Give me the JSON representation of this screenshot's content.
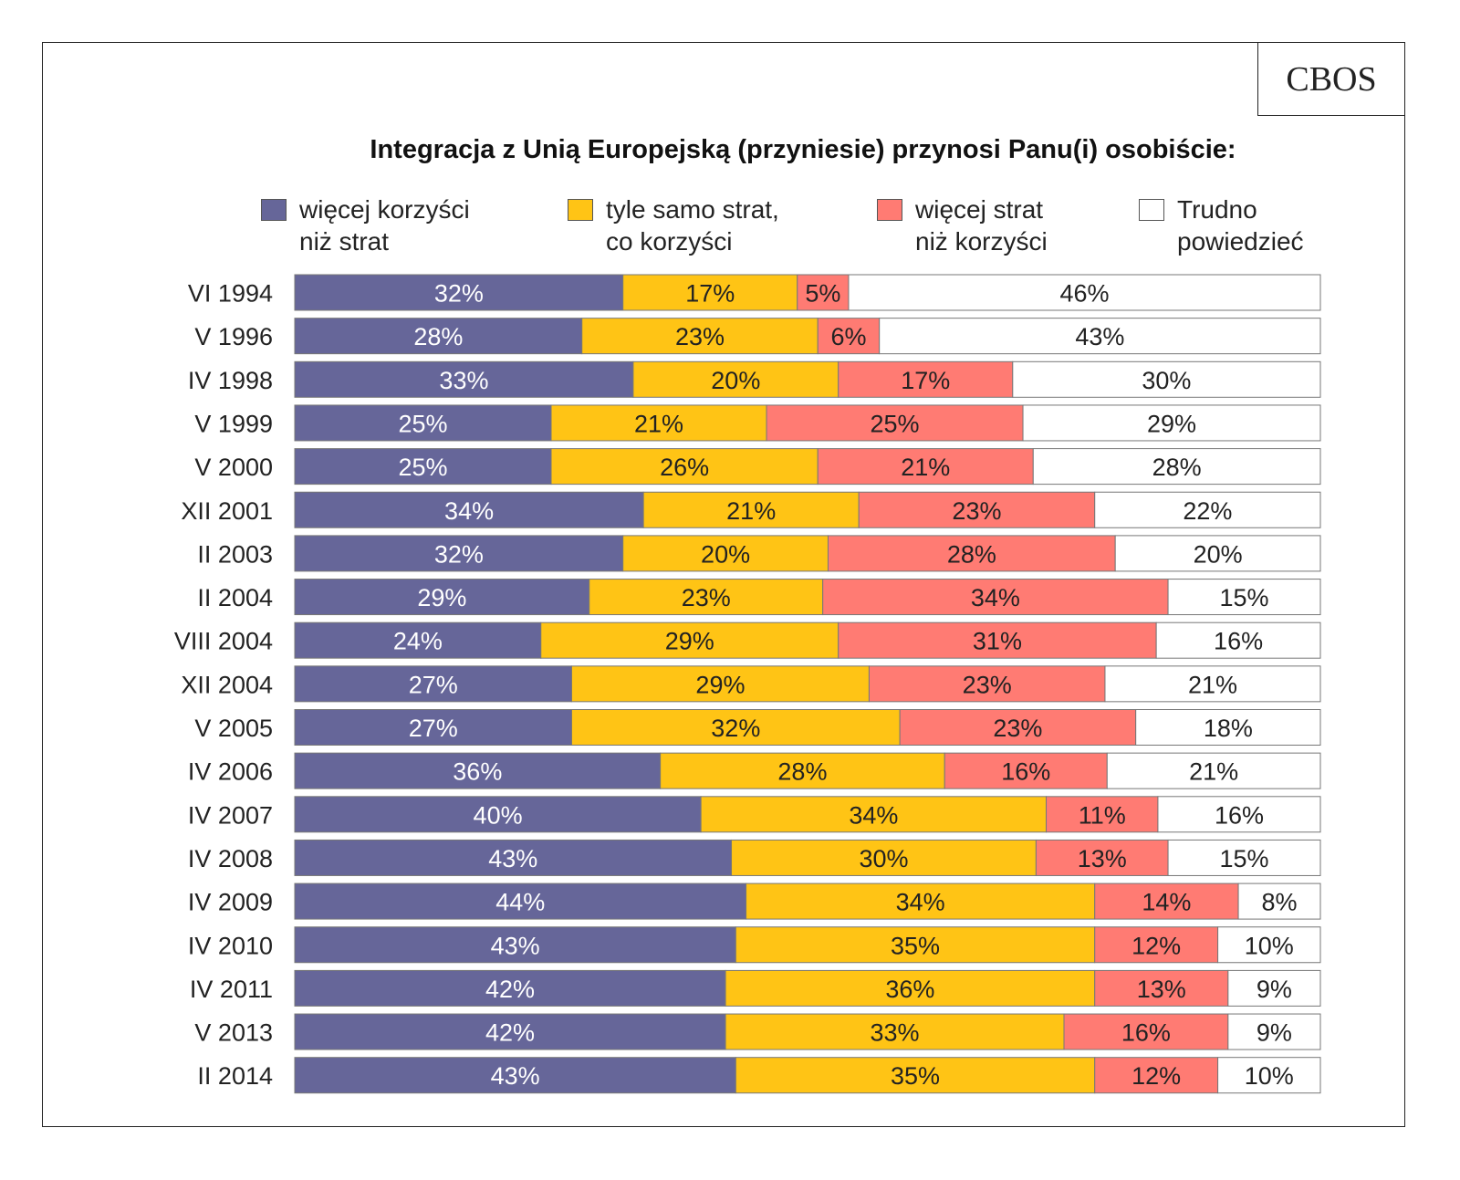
{
  "logo": "CBOS",
  "chart_data": {
    "type": "bar",
    "orientation": "horizontal",
    "stacked": true,
    "title": "Integracja z Unią Europejską (przyniesie) przynosi Panu(i) osobiście:",
    "legend_position": "top",
    "categories": [
      "VI 1994",
      "V 1996",
      "IV  1998",
      "V  1999",
      "V  2000",
      "XII 2001",
      "II 2003",
      "II 2004",
      "VIII 2004",
      "XII 2004",
      "V 2005",
      "IV 2006",
      "IV 2007",
      "IV 2008",
      "IV 2009",
      "IV 2010",
      "IV 2011",
      "V 2013",
      "II 2014"
    ],
    "series": [
      {
        "name": "więcej korzyści niż strat",
        "name_lines": [
          "więcej korzyści",
          "niż strat"
        ],
        "color": "#666699",
        "values": [
          32,
          28,
          33,
          25,
          25,
          34,
          32,
          29,
          24,
          27,
          27,
          36,
          40,
          43,
          44,
          43,
          42,
          42,
          43
        ]
      },
      {
        "name": "tyle samo strat, co korzyści",
        "name_lines": [
          "tyle samo strat,",
          "co korzyści"
        ],
        "color": "#FFC415",
        "values": [
          17,
          23,
          20,
          21,
          26,
          21,
          20,
          23,
          29,
          29,
          32,
          28,
          34,
          30,
          34,
          35,
          36,
          33,
          35
        ]
      },
      {
        "name": "więcej strat niż korzyści",
        "name_lines": [
          "więcej strat",
          "niż korzyści"
        ],
        "color": "#FF7B73",
        "values": [
          5,
          6,
          17,
          25,
          21,
          23,
          28,
          34,
          31,
          23,
          23,
          16,
          11,
          13,
          14,
          12,
          13,
          16,
          12
        ]
      },
      {
        "name": "Trudno powiedzieć",
        "name_lines": [
          "Trudno",
          "powiedzieć"
        ],
        "color": "#FFFFFF",
        "values": [
          46,
          43,
          30,
          29,
          28,
          22,
          20,
          15,
          16,
          21,
          18,
          21,
          16,
          15,
          8,
          10,
          9,
          9,
          10
        ]
      }
    ],
    "value_suffix": "%",
    "grid": false
  }
}
